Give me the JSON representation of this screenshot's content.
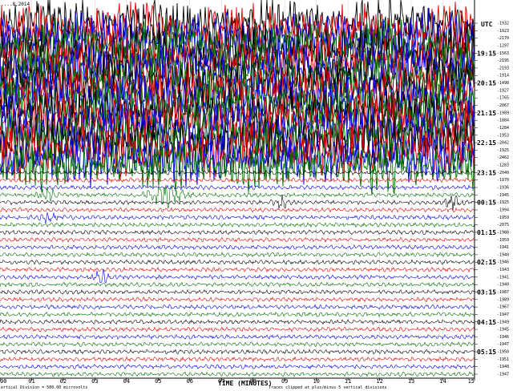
{
  "chart_data": {
    "type": "line",
    "title": "",
    "date_label": "....8,2014",
    "xlabel": "TIME (MINUTES)",
    "ylabel": "",
    "xlim": [
      0,
      15
    ],
    "x_ticks": [
      "00",
      "01",
      "02",
      "03",
      "04",
      "05",
      "06",
      "07",
      "08",
      "09",
      "10",
      "11",
      "12",
      "13",
      "14",
      "15"
    ],
    "y_axis_title": "UTC",
    "y_ticks": [
      "19:15",
      "20:15",
      "21:15",
      "22:15",
      "23:15",
      "00:15",
      "01:15",
      "02:15",
      "03:15",
      "04:15",
      "05:15"
    ],
    "row_values": [
      "1932",
      "1923",
      "2170",
      "1297",
      "1563",
      "2195",
      "2193",
      "1914",
      "1498",
      "1927",
      "1765",
      "2067",
      "1989",
      "1884",
      "1284",
      "1953",
      "2042",
      "1925",
      "2462",
      "1283",
      "2040",
      "1970",
      "1936",
      "1945",
      "1925",
      "1994",
      "1959",
      "2075",
      "1988",
      "1959",
      "1941",
      "1940",
      "1946",
      "1943",
      "1941",
      "1940",
      "1987",
      "1989",
      "1967",
      "1947",
      "1949",
      "1945",
      "1946",
      "1947",
      "1950",
      "1951",
      "1948",
      "1947"
    ],
    "trace_colors": [
      "#000000",
      "#e00000",
      "#0000e0",
      "#007000"
    ],
    "footer_left": "ertical Division = 500.00 microvolts",
    "footer_right": "Traces clipped at plus/minus 5 vertical divisions",
    "series": [
      {
        "hours": "18:15-23:00",
        "activity": "saturated"
      },
      {
        "hours": "23:15-06:00",
        "activity": "background",
        "notable_events": [
          {
            "hour": "00:00",
            "minute": 5.2,
            "size": "large"
          },
          {
            "hour": "00:00",
            "minute": 1.5,
            "size": "medium"
          },
          {
            "hour": "00:15",
            "minute": 8.9,
            "size": "medium"
          },
          {
            "hour": "00:15",
            "minute": 14.3,
            "size": "medium"
          },
          {
            "hour": "00:45",
            "minute": 1.5,
            "size": "medium"
          },
          {
            "hour": "02:45",
            "minute": 3.2,
            "size": "medium"
          }
        ]
      }
    ]
  }
}
